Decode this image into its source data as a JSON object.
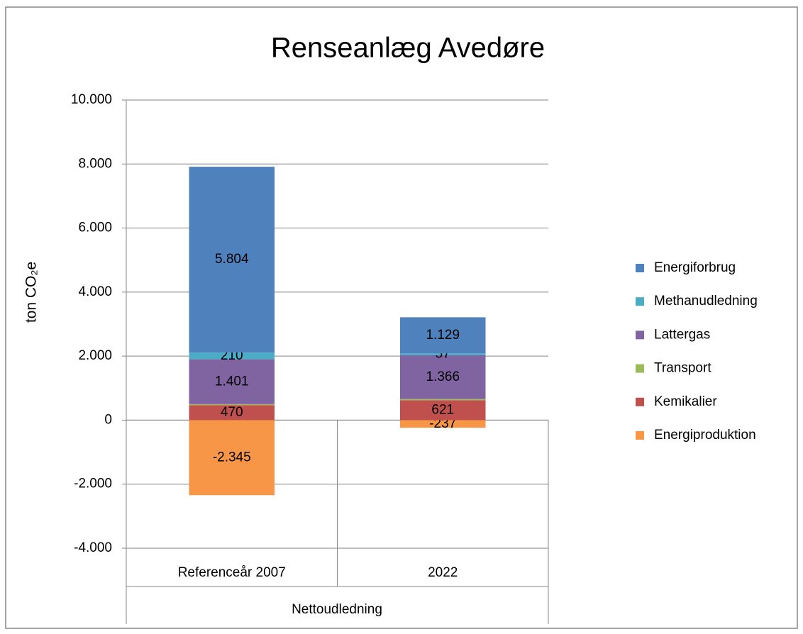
{
  "chart_data": {
    "type": "stacked-bar",
    "title": "Renseanlæg Avedøre",
    "y_label": "ton CO₂e",
    "x_group_label": "Nettoudledning",
    "categories": [
      "Referenceår 2007",
      "2022"
    ],
    "series": [
      {
        "name": "Energiforbrug",
        "color": "#4f81bd",
        "values": [
          5804,
          1129
        ],
        "value_labels": [
          "5.804",
          "1.129"
        ]
      },
      {
        "name": "Methanudledning",
        "color": "#4bacc6",
        "values": [
          210,
          57
        ],
        "value_labels": [
          "210",
          "57"
        ]
      },
      {
        "name": "Lattergas",
        "color": "#8064a2",
        "values": [
          1401,
          1366
        ],
        "value_labels": [
          "1.401",
          "1.366"
        ]
      },
      {
        "name": "Transport",
        "color": "#9bbb59",
        "values": [
          30,
          40
        ]
      },
      {
        "name": "Kemikalier",
        "color": "#c0504d",
        "values": [
          470,
          621
        ],
        "value_labels": [
          "470",
          "621"
        ]
      },
      {
        "name": "Energiproduktion",
        "color": "#f79646",
        "values": [
          -2345,
          -237
        ],
        "value_labels": [
          "-2.345",
          "-237"
        ]
      }
    ],
    "ylim": [
      -4000,
      10000
    ],
    "yticks": [
      {
        "value": -4000,
        "label": "-4.000"
      },
      {
        "value": -2000,
        "label": "-2.000"
      },
      0,
      {
        "value": 2000,
        "label": "2.000"
      },
      {
        "value": 4000,
        "label": "4.000"
      },
      {
        "value": 6000,
        "label": "6.000"
      },
      {
        "value": 8000,
        "label": "8.000"
      },
      {
        "value": 10000,
        "label": "10.000"
      }
    ],
    "grid": true,
    "legend": "right"
  }
}
